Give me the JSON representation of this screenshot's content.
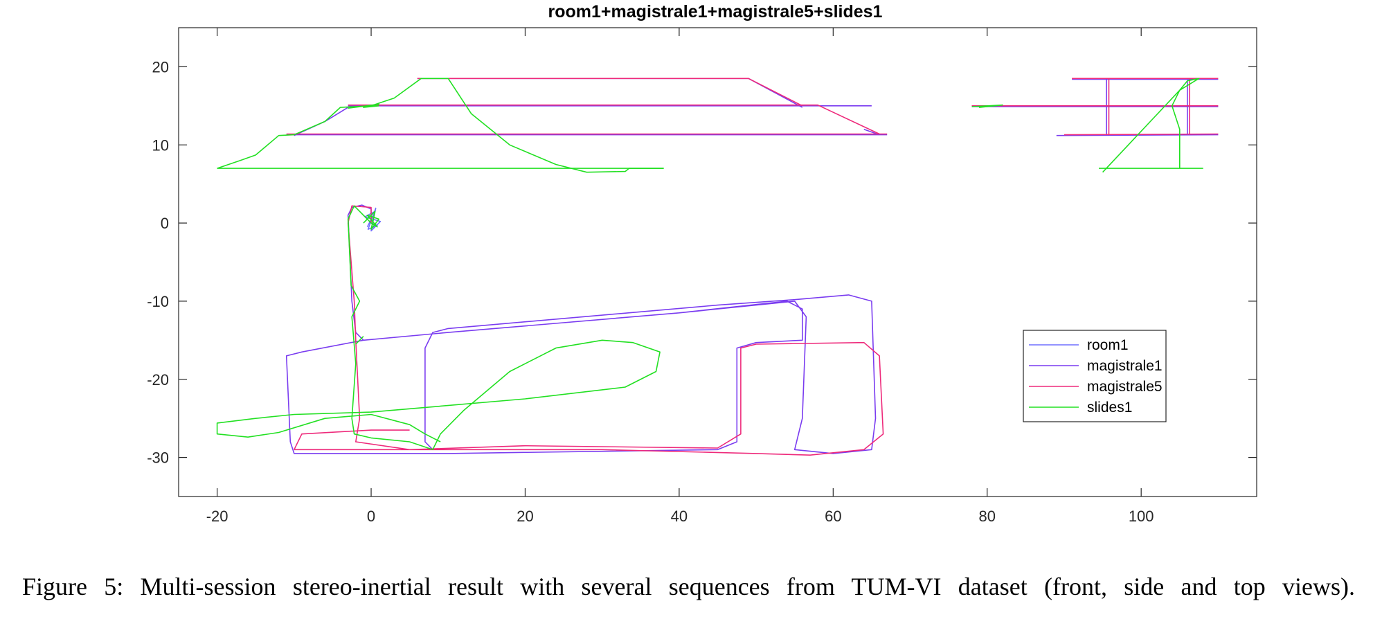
{
  "chart_data": {
    "type": "line",
    "title": "room1+magistrale1+magistrale5+slides1",
    "xlabel": "",
    "ylabel": "",
    "xlim": [
      -25,
      115
    ],
    "ylim": [
      -35,
      25
    ],
    "xticks": [
      -20,
      0,
      20,
      40,
      60,
      80,
      100
    ],
    "yticks": [
      -30,
      -20,
      -10,
      0,
      10,
      20
    ],
    "grid": false,
    "legend_position": "lower-right",
    "series": [
      {
        "name": "room1",
        "color": "#6f6fff",
        "segments": [
          [
            [
              -0.5,
              -0.5
            ],
            [
              0.5,
              1.5
            ],
            [
              -0.8,
              0.8
            ],
            [
              1.2,
              0.2
            ],
            [
              0,
              -1
            ],
            [
              0.6,
              1.9
            ],
            [
              -0.4,
              -0.8
            ],
            [
              0.8,
              -0.3
            ],
            [
              0,
              0
            ]
          ]
        ]
      },
      {
        "name": "magistrale1",
        "color": "#7a3cf0",
        "segments": [
          [
            [
              0,
              0
            ],
            [
              0,
              1.8
            ],
            [
              -1.2,
              2.3
            ],
            [
              -2.5,
              2
            ],
            [
              -3,
              1
            ],
            [
              -2.5,
              -10
            ],
            [
              -2,
              -14
            ],
            [
              -1,
              -15
            ],
            [
              10,
              -14
            ],
            [
              40,
              -11.5
            ],
            [
              54,
              -10
            ],
            [
              56,
              -11
            ],
            [
              56,
              -15
            ],
            [
              50,
              -15.3
            ],
            [
              47.5,
              -16
            ],
            [
              47.5,
              -28
            ],
            [
              45,
              -29
            ],
            [
              10,
              -29.5
            ],
            [
              -10,
              -29.5
            ],
            [
              -10.5,
              -28
            ],
            [
              -11,
              -17
            ],
            [
              -9,
              -16.5
            ],
            [
              -1,
              -15
            ],
            [
              10,
              -14
            ],
            [
              40,
              -11.5
            ],
            [
              55,
              -10
            ],
            [
              56.5,
              -12
            ],
            [
              56,
              -25
            ],
            [
              55,
              -29
            ],
            [
              60,
              -29.5
            ],
            [
              65,
              -29
            ],
            [
              65.5,
              -25
            ],
            [
              65,
              -10
            ],
            [
              62,
              -9.2
            ],
            [
              55,
              -9.8
            ],
            [
              45,
              -10.5
            ],
            [
              10,
              -13.5
            ],
            [
              8,
              -14
            ],
            [
              7,
              -16
            ],
            [
              7,
              -28
            ],
            [
              8,
              -29
            ]
          ],
          [
            [
              -11,
              11.3
            ],
            [
              67,
              11.3
            ]
          ],
          [
            [
              -3,
              15
            ],
            [
              65,
              15
            ]
          ],
          [
            [
              6,
              18.5
            ],
            [
              49,
              18.5
            ],
            [
              56,
              14.8
            ]
          ],
          [
            [
              -10,
              11.2
            ],
            [
              -6,
              13
            ],
            [
              -3,
              14.8
            ]
          ],
          [
            [
              64,
              12
            ],
            [
              66,
              11.3
            ]
          ],
          [
            [
              91,
              18.4
            ],
            [
              110,
              18.4
            ]
          ],
          [
            [
              78,
              14.9
            ],
            [
              110,
              14.9
            ]
          ],
          [
            [
              89,
              11.2
            ],
            [
              110,
              11.3
            ]
          ],
          [
            [
              95.5,
              18.4
            ],
            [
              95.5,
              11.3
            ]
          ],
          [
            [
              106,
              18.3
            ],
            [
              106,
              11.3
            ]
          ]
        ]
      },
      {
        "name": "magistrale5",
        "color": "#ee2a7b",
        "segments": [
          [
            [
              0,
              0
            ],
            [
              0,
              2
            ],
            [
              -2.5,
              2.2
            ],
            [
              -3,
              0
            ],
            [
              -2.2,
              -10
            ],
            [
              -2,
              -15
            ],
            [
              -1.5,
              -25
            ],
            [
              -2,
              -28
            ],
            [
              5,
              -29
            ],
            [
              20,
              -28.5
            ],
            [
              45,
              -28.8
            ],
            [
              48,
              -27
            ],
            [
              48,
              -16
            ],
            [
              50,
              -15.5
            ],
            [
              64,
              -15.3
            ],
            [
              66,
              -17
            ],
            [
              66.5,
              -27
            ],
            [
              64,
              -29
            ],
            [
              57,
              -29.7
            ],
            [
              50,
              -29.5
            ],
            [
              30,
              -29
            ],
            [
              10,
              -29
            ],
            [
              -10,
              -29
            ]
          ],
          [
            [
              -10,
              -29
            ],
            [
              -9,
              -27
            ],
            [
              0,
              -26.5
            ],
            [
              5,
              -26.5
            ]
          ],
          [
            [
              -11,
              11.4
            ],
            [
              67,
              11.4
            ]
          ],
          [
            [
              -3,
              15.1
            ],
            [
              58,
              15.1
            ],
            [
              66,
              11.4
            ]
          ],
          [
            [
              6,
              18.5
            ],
            [
              49,
              18.5
            ],
            [
              56,
              15
            ]
          ],
          [
            [
              90,
              11.3
            ],
            [
              110,
              11.4
            ]
          ],
          [
            [
              78,
              15
            ],
            [
              110,
              15
            ]
          ],
          [
            [
              91,
              18.5
            ],
            [
              110,
              18.5
            ]
          ],
          [
            [
              95.8,
              18.5
            ],
            [
              95.8,
              11.4
            ]
          ],
          [
            [
              106.3,
              18.4
            ],
            [
              106.3,
              11.4
            ]
          ]
        ]
      },
      {
        "name": "slides1",
        "color": "#22e022",
        "segments": [
          [
            [
              -20,
              7
            ],
            [
              -17,
              8
            ],
            [
              -15,
              8.7
            ],
            [
              -12,
              11.2
            ],
            [
              -10,
              11.3
            ],
            [
              -6,
              13
            ],
            [
              -4,
              14.8
            ],
            [
              0,
              15
            ],
            [
              3,
              16
            ],
            [
              6.5,
              18.5
            ],
            [
              10,
              18.5
            ],
            [
              13,
              14
            ],
            [
              18,
              10
            ],
            [
              24,
              7.5
            ],
            [
              28,
              6.5
            ],
            [
              33,
              6.6
            ],
            [
              33.5,
              7
            ],
            [
              38,
              7
            ]
          ],
          [
            [
              -20,
              7
            ],
            [
              38,
              7
            ]
          ],
          [
            [
              -3,
              14.7
            ],
            [
              1,
              15.2
            ],
            [
              -1,
              14.8
            ],
            [
              1,
              15
            ]
          ],
          [
            [
              -1,
              0
            ],
            [
              0.5,
              1.5
            ],
            [
              0,
              -0.8
            ],
            [
              1,
              0.5
            ],
            [
              -0.5,
              1
            ],
            [
              0.8,
              -0.5
            ],
            [
              0,
              0
            ]
          ],
          [
            [
              0,
              0
            ],
            [
              -2.2,
              2.2
            ],
            [
              -3,
              0.5
            ],
            [
              -2.6,
              -8
            ],
            [
              -1.5,
              -10
            ],
            [
              -2.5,
              -12
            ],
            [
              -2,
              -18
            ],
            [
              -2.5,
              -25
            ],
            [
              -2.2,
              -27
            ],
            [
              0,
              -27.5
            ],
            [
              5,
              -28
            ],
            [
              8,
              -29
            ],
            [
              9,
              -27
            ],
            [
              12,
              -24
            ],
            [
              18,
              -19
            ],
            [
              24,
              -16
            ],
            [
              30,
              -15
            ],
            [
              34,
              -15.3
            ],
            [
              37.5,
              -16.5
            ],
            [
              37,
              -19
            ],
            [
              33,
              -21
            ],
            [
              20,
              -22.5
            ],
            [
              0,
              -24.2
            ],
            [
              -10,
              -24.5
            ],
            [
              -15,
              -25
            ],
            [
              -20,
              -25.6
            ],
            [
              -20,
              -27
            ],
            [
              -16,
              -27.4
            ],
            [
              -12,
              -26.8
            ],
            [
              -6,
              -25
            ],
            [
              0,
              -24.5
            ],
            [
              5,
              -25.8
            ],
            [
              7,
              -27
            ],
            [
              9,
              -28
            ]
          ],
          [
            [
              -2,
              -15.5
            ],
            [
              -1,
              -14.5
            ]
          ],
          [
            [
              78,
              14.9
            ],
            [
              82,
              15.1
            ],
            [
              79,
              14.8
            ],
            [
              81,
              15
            ]
          ],
          [
            [
              95,
              6.5
            ],
            [
              105,
              17
            ],
            [
              107.5,
              18.5
            ],
            [
              106,
              18.2
            ],
            [
              105,
              17
            ],
            [
              104,
              15
            ],
            [
              105,
              12
            ],
            [
              105,
              7
            ],
            [
              108,
              7
            ],
            [
              94.5,
              7
            ]
          ]
        ]
      }
    ]
  },
  "caption": "Figure 5: Multi-session stereo-inertial result with several sequences from TUM-VI dataset (front, side and top views)."
}
